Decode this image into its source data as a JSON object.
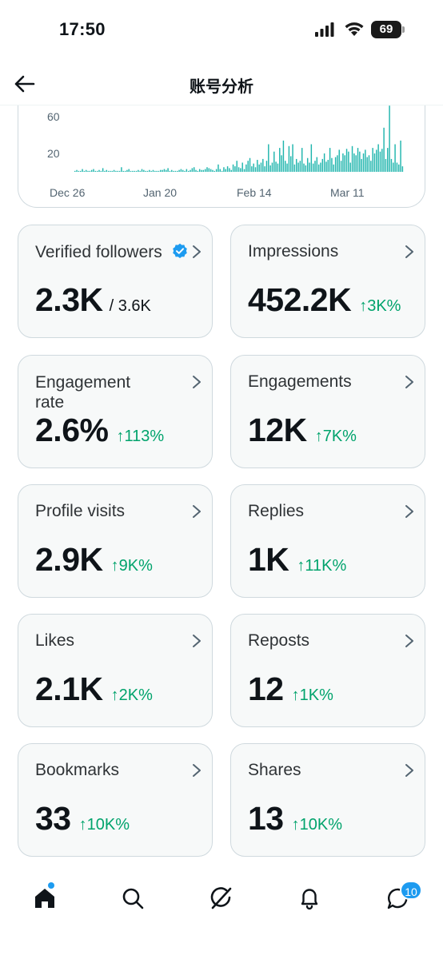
{
  "status_bar": {
    "time": "17:50",
    "battery": "69"
  },
  "header": {
    "title": "账号分析"
  },
  "chart_data": {
    "type": "bar",
    "y_ticks": [
      "60",
      "20"
    ],
    "x_tick_labels": [
      "Dec 26",
      "Jan 20",
      "Feb 14",
      "Mar 11"
    ],
    "ylim": [
      0,
      80
    ],
    "color": "#1fb5ad",
    "values": [
      1,
      2,
      1,
      1,
      3,
      1,
      2,
      1,
      1,
      2,
      3,
      1,
      1,
      2,
      1,
      4,
      1,
      2,
      1,
      1,
      1,
      2,
      1,
      1,
      1,
      5,
      1,
      1,
      2,
      3,
      1,
      1,
      1,
      1,
      2,
      1,
      3,
      2,
      1,
      1,
      2,
      1,
      2,
      1,
      1,
      1,
      2,
      2,
      3,
      2,
      4,
      1,
      2,
      1,
      1,
      1,
      2,
      3,
      2,
      1,
      3,
      1,
      2,
      4,
      5,
      2,
      1,
      3,
      2,
      2,
      3,
      5,
      4,
      3,
      2,
      1,
      3,
      8,
      3,
      1,
      5,
      3,
      6,
      4,
      2,
      8,
      6,
      12,
      5,
      4,
      10,
      3,
      8,
      12,
      15,
      6,
      9,
      5,
      13,
      8,
      10,
      14,
      6,
      12,
      30,
      7,
      10,
      22,
      11,
      9,
      26,
      18,
      34,
      12,
      9,
      28,
      17,
      30,
      8,
      14,
      10,
      12,
      26,
      9,
      7,
      15,
      10,
      30,
      9,
      12,
      16,
      8,
      10,
      14,
      20,
      11,
      13,
      26,
      15,
      8,
      16,
      18,
      24,
      12,
      20,
      18,
      25,
      22,
      10,
      28,
      20,
      18,
      26,
      22,
      14,
      20,
      24,
      16,
      18,
      12,
      26,
      20,
      24,
      30,
      22,
      25,
      48,
      14,
      26,
      72,
      14,
      10,
      30,
      10,
      8,
      34,
      6
    ]
  },
  "metrics": [
    {
      "label": "Verified followers",
      "value": "2.3K",
      "sub": "/ 3.6K",
      "change": "",
      "verified": true
    },
    {
      "label": "Impressions",
      "value": "452.2K",
      "sub": "",
      "change": "↑3K%"
    },
    {
      "label": "Engagement rate",
      "value": "2.6%",
      "sub": "",
      "change": "↑113%"
    },
    {
      "label": "Engagements",
      "value": "12K",
      "sub": "",
      "change": "↑7K%"
    },
    {
      "label": "Profile visits",
      "value": "2.9K",
      "sub": "",
      "change": "↑9K%"
    },
    {
      "label": "Replies",
      "value": "1K",
      "sub": "",
      "change": "↑11K%"
    },
    {
      "label": "Likes",
      "value": "2.1K",
      "sub": "",
      "change": "↑2K%"
    },
    {
      "label": "Reposts",
      "value": "12",
      "sub": "",
      "change": "↑1K%"
    },
    {
      "label": "Bookmarks",
      "value": "33",
      "sub": "",
      "change": "↑10K%"
    },
    {
      "label": "Shares",
      "value": "13",
      "sub": "",
      "change": "↑10K%"
    }
  ],
  "tabbar": {
    "tabs": [
      "home-icon",
      "search-icon",
      "grok-icon",
      "notifications-icon",
      "messages-icon"
    ],
    "messages_badge": "10"
  },
  "colors": {
    "accent": "#1d9bf0",
    "positive": "#00a36c",
    "bar": "#1fb5ad"
  }
}
